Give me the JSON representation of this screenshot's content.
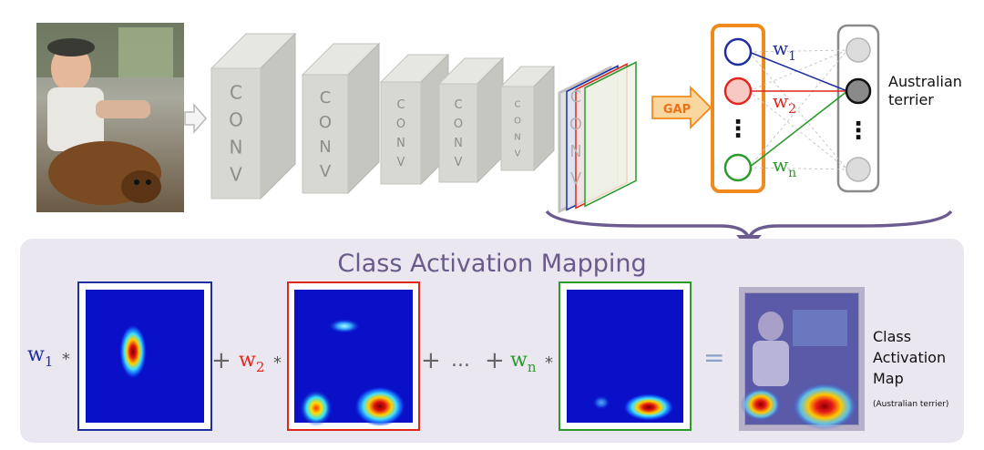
{
  "input_photo": {
    "description_icon": "photo-icon"
  },
  "conv_layers": [
    {
      "letters": [
        "C",
        "O",
        "N",
        "V"
      ]
    },
    {
      "letters": [
        "C",
        "O",
        "N",
        "V"
      ]
    },
    {
      "letters": [
        "C",
        "O",
        "N",
        "V"
      ]
    },
    {
      "letters": [
        "C",
        "O",
        "N",
        "V"
      ]
    },
    {
      "letters": [
        "C",
        "O",
        "N",
        "V"
      ]
    },
    {
      "letters": [
        "C",
        "O",
        "N",
        "V"
      ]
    }
  ],
  "gap_label": "GAP",
  "weights": [
    {
      "base": "w",
      "sub": "1",
      "color": "#1f2fa0"
    },
    {
      "base": "w",
      "sub": "2",
      "color": "#e0271f"
    },
    {
      "base": "w",
      "sub": "n",
      "color": "#2a9a2a"
    }
  ],
  "vertical_dots": "⋮",
  "class_label": [
    "Australian",
    "terrier"
  ],
  "cam_title": "Class Activation Mapping",
  "equation": {
    "plus": "+",
    "ellipsis": "...",
    "times": "*",
    "equals": "="
  },
  "output_label": [
    "Class",
    "Activation",
    "Map"
  ],
  "output_sublabel": "(Australian terrier)",
  "colors": {
    "blue": "#1f2fa0",
    "red": "#e0271f",
    "green": "#2a9a2a",
    "gap_orange": "#f08a1c",
    "panel_bg": "#ebe7f0",
    "title_purple": "#6a5a8a",
    "arrow_purple": "#6b5b8e",
    "conv_gray": "#d6d6d2"
  }
}
